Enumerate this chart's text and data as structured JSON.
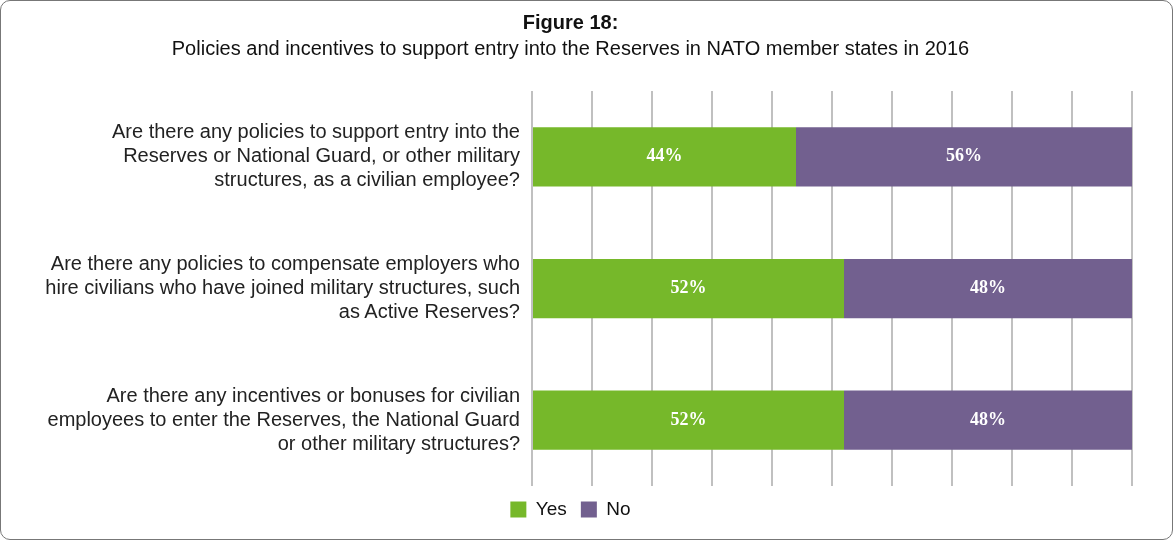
{
  "chart_data": {
    "type": "bar",
    "orientation": "horizontal",
    "stacked": true,
    "title": "Figure 18:",
    "subtitle": "Policies and incentives to support entry into the Reserves in NATO member states in 2016",
    "categories": [
      "Are there any policies to support entry into the Reserves or National Guard, or other military structures, as a civilian employee?",
      "Are there any policies to compensate employers who hire civilians who have joined military structures, such as Active Reserves?",
      "Are there any incentives or bonuses for civilian employees to enter the Reserves, the National Guard or other military structures?"
    ],
    "series": [
      {
        "name": "Yes",
        "color": "#76b82a",
        "values": [
          44,
          52,
          52
        ],
        "value_labels": [
          "44%",
          "52%",
          "52%"
        ]
      },
      {
        "name": "No",
        "color": "#72608f",
        "values": [
          56,
          48,
          48
        ],
        "value_labels": [
          "56%",
          "48%",
          "48%"
        ]
      }
    ],
    "xlim": [
      0,
      100
    ],
    "xticks": [
      {
        "value": 0,
        "label": null
      },
      {
        "value": 10,
        "label": null
      },
      {
        "value": 20,
        "label": null
      },
      {
        "value": 30,
        "label": null
      },
      {
        "value": 40,
        "label": null
      },
      {
        "value": 50,
        "label": null
      },
      {
        "value": 60,
        "label": null
      },
      {
        "value": 70,
        "label": null
      },
      {
        "value": 80,
        "label": null
      },
      {
        "value": 90,
        "label": null
      },
      {
        "value": 100,
        "label": null
      }
    ],
    "tick_labels": "y",
    "grid": "x",
    "legend": "bottom"
  }
}
